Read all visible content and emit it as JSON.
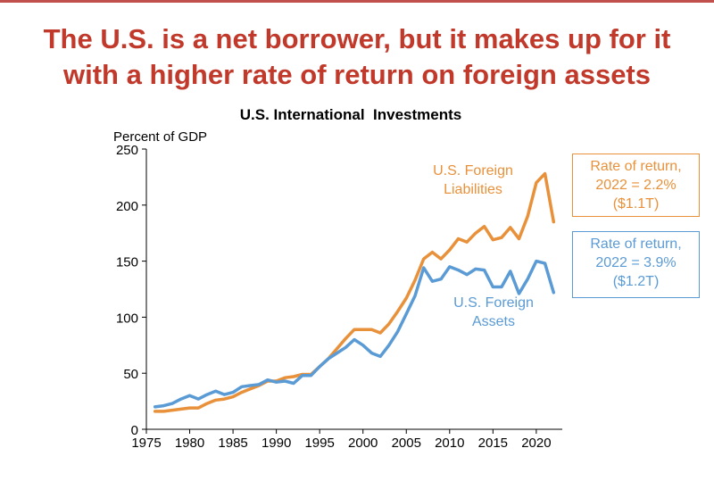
{
  "slide": {
    "title_line1": "The U.S. is a net borrower, but it makes up for it",
    "title_line2": "with a higher rate of return on foreign assets"
  },
  "callouts": {
    "liabilities": {
      "line1": "Rate of return,",
      "line2": "2022 = 2.2%",
      "line3": "($1.1T)",
      "color": "#e8913a"
    },
    "assets": {
      "line1": "Rate of return,",
      "line2": "2022 = 3.9%",
      "line3": "($1.2T)",
      "color": "#5b9bd5"
    }
  },
  "chart_data": {
    "type": "line",
    "title": "U.S. International  Investments",
    "ylabel": "Percent of GDP",
    "xlabel": "",
    "xlim": [
      1975,
      2023
    ],
    "ylim": [
      0,
      250
    ],
    "x_ticks": [
      1975,
      1980,
      1985,
      1990,
      1995,
      2000,
      2005,
      2010,
      2015,
      2020
    ],
    "y_ticks": [
      0,
      50,
      100,
      150,
      200,
      250
    ],
    "grid": false,
    "x": [
      1976,
      1977,
      1978,
      1979,
      1980,
      1981,
      1982,
      1983,
      1984,
      1985,
      1986,
      1987,
      1988,
      1989,
      1990,
      1991,
      1992,
      1993,
      1994,
      1995,
      1996,
      1997,
      1998,
      1999,
      2000,
      2001,
      2002,
      2003,
      2004,
      2005,
      2006,
      2007,
      2008,
      2009,
      2010,
      2011,
      2012,
      2013,
      2014,
      2015,
      2016,
      2017,
      2018,
      2019,
      2020,
      2021,
      2022
    ],
    "series": [
      {
        "name": "U.S. Foreign Liabilities",
        "label_lines": [
          "U.S. Foreign",
          "Liabilities"
        ],
        "color": "#e8913a",
        "values": [
          16,
          16,
          17,
          18,
          19,
          19,
          23,
          26,
          27,
          29,
          33,
          36,
          39,
          43,
          43,
          46,
          47,
          49,
          49,
          56,
          63,
          72,
          81,
          89,
          89,
          89,
          86,
          94,
          105,
          117,
          133,
          152,
          158,
          152,
          160,
          170,
          167,
          175,
          181,
          169,
          171,
          180,
          170,
          190,
          220,
          228,
          185
        ]
      },
      {
        "name": "U.S. Foreign Assets",
        "label_lines": [
          "U.S. Foreign",
          "Assets"
        ],
        "color": "#5b9bd5",
        "values": [
          20,
          21,
          23,
          27,
          30,
          27,
          31,
          34,
          31,
          33,
          38,
          39,
          40,
          44,
          42,
          43,
          41,
          48,
          48,
          56,
          63,
          68,
          73,
          80,
          75,
          68,
          65,
          75,
          87,
          103,
          119,
          144,
          132,
          134,
          145,
          142,
          138,
          143,
          142,
          127,
          127,
          141,
          121,
          134,
          150,
          148,
          122
        ]
      }
    ]
  }
}
